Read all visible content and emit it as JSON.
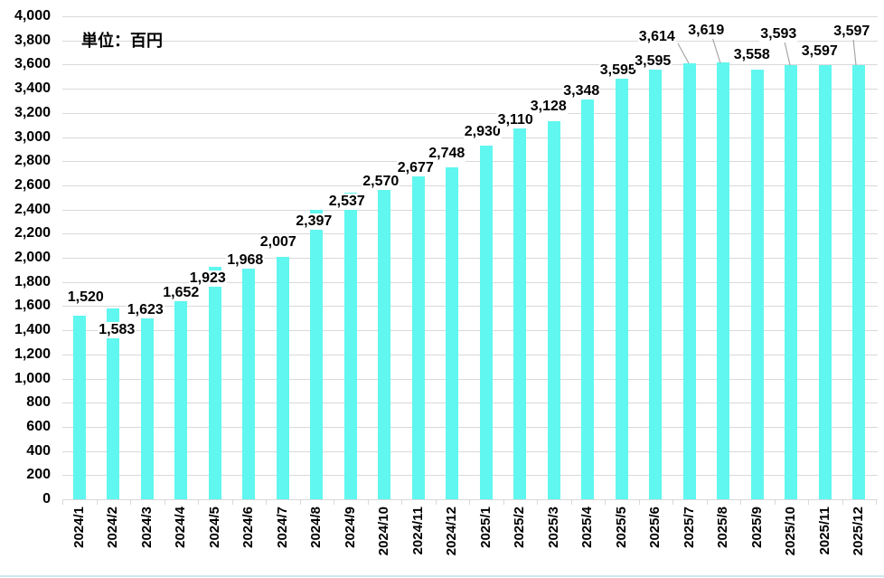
{
  "unit_label": "単位：百円",
  "chart_data": {
    "type": "bar",
    "title": "",
    "xlabel": "",
    "ylabel": "",
    "categories": [
      "2024/1",
      "2024/2",
      "2024/3",
      "2024/4",
      "2024/5",
      "2024/6",
      "2024/7",
      "2024/8",
      "2024/9",
      "2024/10",
      "2024/11",
      "2024/12",
      "2025/1",
      "2025/2",
      "2025/3",
      "2025/4",
      "2025/5",
      "2025/6",
      "2025/7",
      "2025/8",
      "2025/9",
      "2025/10",
      "2025/11",
      "2025/12"
    ],
    "values": [
      1520,
      1583,
      1623,
      1652,
      1923,
      1968,
      2007,
      2397,
      2537,
      2570,
      2677,
      2748,
      2930,
      3110,
      3128,
      3348,
      3595,
      3595,
      3614,
      3619,
      3558,
      3593,
      3597,
      3597
    ],
    "value_labels": [
      "1,520",
      "1,583",
      "1,623",
      "1,652",
      "1,923",
      "1,968",
      "2,007",
      "2,397",
      "2,537",
      "2,570",
      "2,677",
      "2,748",
      "2,930",
      "3,110",
      "3,128",
      "3,348",
      "3,595",
      "3,595",
      "3,614",
      "3,619",
      "3,558",
      "3,593",
      "3,597",
      "3,597"
    ],
    "ylim": [
      0,
      4000
    ],
    "ytick_step": 200,
    "ytick_labels": [
      "0",
      "200",
      "400",
      "600",
      "800",
      "1,000",
      "1,200",
      "1,400",
      "1,600",
      "1,800",
      "2,000",
      "2,200",
      "2,400",
      "2,600",
      "2,800",
      "3,000",
      "3,200",
      "3,400",
      "3,600",
      "3,800",
      "4,000"
    ],
    "grid": true,
    "legend_position": "none",
    "bar_color": "#5FF7EF",
    "grid_color": "#D9D9D9",
    "text_color": "#000000",
    "leader_line_color": "#A6A6A6",
    "bottom_border_color": "#CFE7EE"
  }
}
